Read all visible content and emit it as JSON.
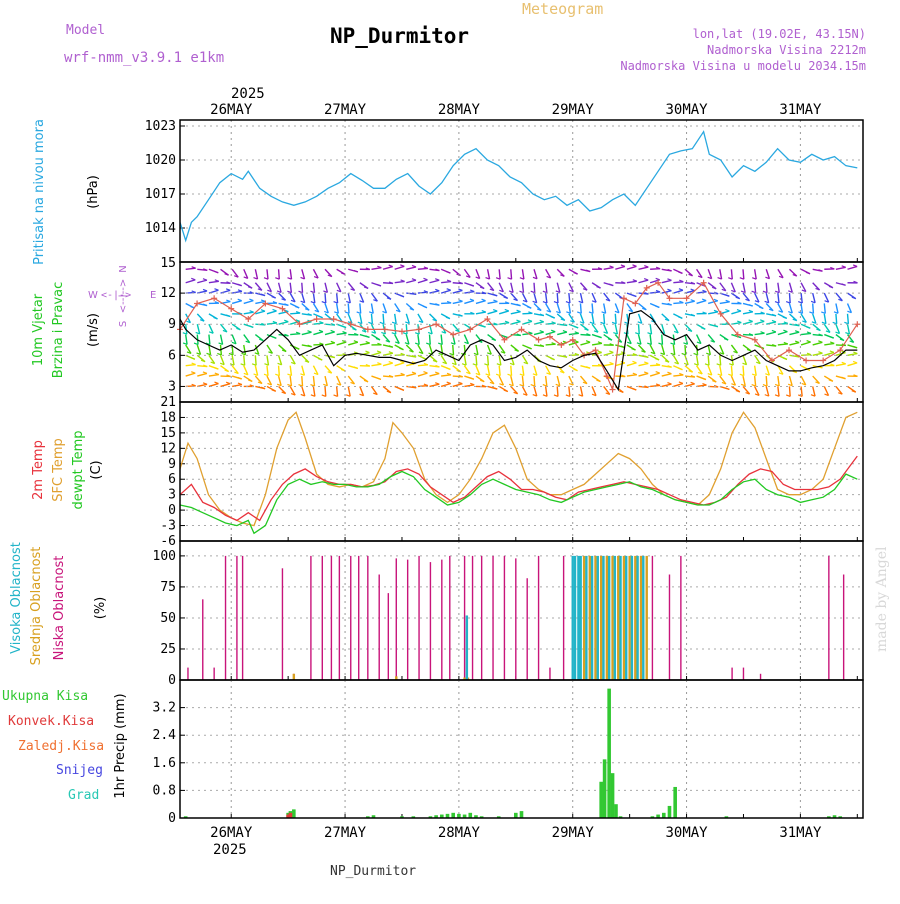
{
  "header": {
    "model_label": "Model",
    "model_name": "wrf-nmm_v3.9.1  e1km",
    "meteogram_label": "Meteogram",
    "station_title": "NP_Durmitor",
    "coords": "lon,lat (19.02E, 43.15N)",
    "altitude": "Nadmorska Visina 2212m",
    "model_altitude": "Nadmorska Visina u modelu 2034.15m"
  },
  "footer": {
    "station": "NP_Durmitor"
  },
  "watermark": "made by Angel",
  "colors": {
    "pressure": "#2aa8e0",
    "wind_mean": "#000000",
    "wind_gust": "#e06050",
    "t2m": "#e8323c",
    "tsfc": "#e0a030",
    "dewpt": "#22c822",
    "cloud_high": "#22b4c8",
    "cloud_mid": "#d8a020",
    "cloud_low": "#c8147a",
    "precip_total": "#32c832",
    "precip_conv": "#e03a3a",
    "precip_frozen": "#f07030",
    "precip_snow": "#4646e0",
    "precip_grad": "#28c8b4"
  },
  "time_axis": {
    "top_year": "2025",
    "bottom_year": "2025",
    "days": [
      "26MAY",
      "27MAY",
      "28MAY",
      "29MAY",
      "30MAY",
      "31MAY"
    ]
  },
  "chart_data": [
    {
      "id": "pressure",
      "type": "line",
      "ylabel_lines": [
        "Pritisak na nivou mora"
      ],
      "unit": "(hPa)",
      "ylim": [
        1011,
        1023
      ],
      "yticks": [
        1014,
        1017,
        1020,
        1023
      ],
      "x_days": [
        25.55,
        25.6,
        25.65,
        25.7,
        25.8,
        25.9,
        26.0,
        26.1,
        26.15,
        26.25,
        26.35,
        26.45,
        26.55,
        26.65,
        26.75,
        26.85,
        26.95,
        27.05,
        27.15,
        27.25,
        27.35,
        27.45,
        27.55,
        27.65,
        27.75,
        27.85,
        27.95,
        28.05,
        28.15,
        28.25,
        28.35,
        28.45,
        28.55,
        28.65,
        28.75,
        28.85,
        28.95,
        29.05,
        29.15,
        29.25,
        29.35,
        29.45,
        29.55,
        29.65,
        29.75,
        29.85,
        29.95,
        30.05,
        30.15,
        30.2,
        30.3,
        30.4,
        30.5,
        30.6,
        30.7,
        30.8,
        30.9,
        31.0,
        31.1,
        31.2,
        31.3,
        31.4,
        31.5
      ],
      "values": [
        1014.5,
        1012.9,
        1014.5,
        1015.0,
        1016.5,
        1018.0,
        1018.8,
        1018.3,
        1019.0,
        1017.5,
        1016.8,
        1016.3,
        1016.0,
        1016.3,
        1016.8,
        1017.5,
        1018.0,
        1018.8,
        1018.2,
        1017.5,
        1017.5,
        1018.3,
        1018.8,
        1017.7,
        1017.0,
        1018.0,
        1019.5,
        1020.5,
        1021.0,
        1020.0,
        1019.5,
        1018.5,
        1018.0,
        1017.0,
        1016.5,
        1016.8,
        1016.0,
        1016.5,
        1015.5,
        1015.8,
        1016.5,
        1017.0,
        1016.0,
        1017.5,
        1019.0,
        1020.5,
        1020.8,
        1021.0,
        1022.5,
        1020.5,
        1020.0,
        1018.5,
        1019.5,
        1019.0,
        1019.8,
        1021.0,
        1020.0,
        1019.8,
        1020.5,
        1020.0,
        1020.3,
        1019.5,
        1019.3
      ],
      "line_width": 1.3
    },
    {
      "id": "wind",
      "type": "line",
      "ylabel_lines": [
        "10m Vjetar",
        "Brzina i Pravac"
      ],
      "unit": "(m/s)",
      "ylim": [
        1.5,
        15
      ],
      "yticks": [
        3,
        6,
        9,
        12,
        15
      ],
      "legend_compass": {
        "n": "N",
        "s": "S",
        "w": "W",
        "e": "E",
        "glyph_top": "<-|->",
        "glyph_bottom": "<--|-->"
      },
      "mean_speed": {
        "x_days": [
          25.55,
          25.6,
          25.7,
          25.8,
          25.9,
          26.0,
          26.1,
          26.2,
          26.3,
          26.4,
          26.5,
          26.6,
          26.7,
          26.8,
          26.9,
          27.0,
          27.1,
          27.2,
          27.3,
          27.4,
          27.5,
          27.6,
          27.7,
          27.8,
          27.9,
          28.0,
          28.1,
          28.2,
          28.3,
          28.4,
          28.5,
          28.6,
          28.7,
          28.8,
          28.9,
          29.0,
          29.1,
          29.2,
          29.3,
          29.4,
          29.5,
          29.6,
          29.7,
          29.8,
          29.9,
          30.0,
          30.1,
          30.2,
          30.3,
          30.4,
          30.5,
          30.6,
          30.7,
          30.8,
          30.9,
          31.0,
          31.1,
          31.2,
          31.3,
          31.4,
          31.5
        ],
        "values": [
          9.5,
          8.5,
          7.5,
          7.0,
          6.5,
          7.0,
          6.3,
          6.5,
          7.5,
          8.5,
          7.5,
          6.0,
          6.5,
          7.0,
          5.0,
          6.0,
          6.2,
          6.0,
          5.8,
          5.8,
          5.5,
          5.2,
          5.5,
          6.5,
          6.0,
          5.5,
          7.0,
          7.5,
          7.0,
          5.5,
          5.8,
          6.5,
          5.5,
          5.0,
          4.8,
          5.5,
          6.0,
          6.2,
          4.5,
          2.7,
          10.0,
          10.3,
          9.5,
          8.0,
          7.5,
          8.0,
          6.5,
          7.0,
          6.0,
          5.5,
          6.0,
          6.5,
          5.5,
          5.0,
          4.5,
          4.5,
          4.8,
          5.0,
          5.5,
          6.5,
          6.5
        ]
      },
      "gust_speed": {
        "x_days": [
          25.55,
          25.7,
          25.85,
          26.0,
          26.15,
          26.3,
          26.45,
          26.6,
          26.75,
          26.9,
          27.05,
          27.2,
          27.35,
          27.5,
          27.65,
          27.8,
          27.95,
          28.1,
          28.25,
          28.4,
          28.55,
          28.7,
          28.8,
          28.9,
          29.0,
          29.1,
          29.2,
          29.3,
          29.35,
          29.45,
          29.55,
          29.65,
          29.75,
          29.85,
          30.0,
          30.15,
          30.3,
          30.45,
          30.6,
          30.75,
          30.9,
          31.05,
          31.2,
          31.35,
          31.5
        ],
        "values": [
          8.5,
          11.0,
          11.5,
          10.5,
          9.5,
          11.0,
          10.5,
          9.0,
          9.5,
          9.5,
          9.0,
          8.5,
          8.5,
          8.3,
          8.5,
          9.0,
          8.0,
          8.5,
          9.5,
          7.5,
          8.5,
          7.5,
          7.8,
          7.0,
          7.5,
          6.0,
          6.5,
          4.0,
          2.7,
          11.5,
          11.0,
          12.5,
          13.0,
          11.5,
          11.5,
          13.0,
          10.0,
          8.0,
          7.5,
          5.5,
          6.5,
          5.5,
          5.5,
          6.5,
          9.0
        ]
      },
      "barb_speed_colors": [
        "#ff7000",
        "#ffaa00",
        "#ffdd00",
        "#a6e000",
        "#46cf00",
        "#00c855",
        "#00c8b4",
        "#00b4d8",
        "#1e90ff",
        "#3c46e6",
        "#7828c8",
        "#9614b4"
      ],
      "barb_levels": [
        3,
        4,
        5,
        6,
        7,
        8,
        9,
        10,
        11,
        12,
        13,
        14.3
      ]
    },
    {
      "id": "temperature",
      "type": "line",
      "ylabel_lines": [
        "2m Temp",
        "SFC Temp",
        "dewpt Temp"
      ],
      "unit": "(C)",
      "ylim": [
        -6,
        21
      ],
      "yticks": [
        -6,
        -3,
        0,
        3,
        6,
        9,
        12,
        15,
        18,
        21
      ],
      "series": [
        {
          "name": "2m Temp",
          "x_days": [
            25.55,
            25.65,
            25.75,
            25.85,
            25.95,
            26.05,
            26.15,
            26.25,
            26.35,
            26.45,
            26.55,
            26.65,
            26.75,
            26.85,
            26.95,
            27.05,
            27.15,
            27.25,
            27.35,
            27.45,
            27.55,
            27.65,
            27.75,
            27.85,
            27.95,
            28.05,
            28.15,
            28.25,
            28.35,
            28.45,
            28.55,
            28.65,
            28.75,
            28.85,
            28.95,
            29.05,
            29.15,
            29.25,
            29.35,
            29.45,
            29.55,
            29.65,
            29.75,
            29.85,
            29.95,
            30.05,
            30.15,
            30.25,
            30.35,
            30.45,
            30.55,
            30.65,
            30.75,
            30.85,
            30.95,
            31.05,
            31.15,
            31.25,
            31.35,
            31.45,
            31.5
          ],
          "values": [
            3.0,
            5.0,
            1.5,
            0.5,
            -1.0,
            -2.0,
            -0.5,
            -2.0,
            2.0,
            5.0,
            7.0,
            8.0,
            6.5,
            5.5,
            5.0,
            5.0,
            4.5,
            4.8,
            5.5,
            7.5,
            8.0,
            7.0,
            4.5,
            3.0,
            1.5,
            2.5,
            4.5,
            6.5,
            7.5,
            6.0,
            4.0,
            4.0,
            3.5,
            2.5,
            2.0,
            3.5,
            4.0,
            4.5,
            5.0,
            5.5,
            5.0,
            4.5,
            4.0,
            3.0,
            2.0,
            1.5,
            1.0,
            1.5,
            2.5,
            5.0,
            7.0,
            8.0,
            7.5,
            5.0,
            4.0,
            4.0,
            4.0,
            4.5,
            6.0,
            9.0,
            10.5
          ]
        },
        {
          "name": "SFC Temp",
          "x_days": [
            25.55,
            25.62,
            25.7,
            25.8,
            25.9,
            26.0,
            26.1,
            26.2,
            26.3,
            26.4,
            26.5,
            26.57,
            26.65,
            26.75,
            26.85,
            26.95,
            27.05,
            27.15,
            27.25,
            27.35,
            27.42,
            27.5,
            27.6,
            27.7,
            27.8,
            27.9,
            28.0,
            28.1,
            28.2,
            28.3,
            28.4,
            28.5,
            28.6,
            28.7,
            28.8,
            28.9,
            29.0,
            29.1,
            29.2,
            29.3,
            29.4,
            29.5,
            29.6,
            29.7,
            29.8,
            29.9,
            30.0,
            30.1,
            30.2,
            30.3,
            30.4,
            30.5,
            30.6,
            30.7,
            30.8,
            30.9,
            31.0,
            31.1,
            31.2,
            31.3,
            31.4,
            31.5
          ],
          "values": [
            8.0,
            13.0,
            10.0,
            3.0,
            0.0,
            -1.5,
            -2.5,
            -3.0,
            3.0,
            12.0,
            17.5,
            19.0,
            14.0,
            7.0,
            5.0,
            4.5,
            5.0,
            4.5,
            5.5,
            10.0,
            17.0,
            15.0,
            12.0,
            6.0,
            3.0,
            1.5,
            3.0,
            6.0,
            10.0,
            15.0,
            16.5,
            12.0,
            6.0,
            4.0,
            3.0,
            3.0,
            4.0,
            5.0,
            7.0,
            9.0,
            11.0,
            10.0,
            8.0,
            5.0,
            3.0,
            2.0,
            1.5,
            1.0,
            3.0,
            8.0,
            15.0,
            19.0,
            16.0,
            10.0,
            4.0,
            3.0,
            3.0,
            4.0,
            6.0,
            12.0,
            18.0,
            19.0
          ]
        },
        {
          "name": "dewpt Temp",
          "x_days": [
            25.55,
            25.65,
            25.75,
            25.85,
            25.95,
            26.05,
            26.15,
            26.2,
            26.3,
            26.4,
            26.5,
            26.6,
            26.7,
            26.8,
            26.9,
            27.0,
            27.1,
            27.2,
            27.3,
            27.4,
            27.5,
            27.6,
            27.7,
            27.8,
            27.9,
            28.0,
            28.1,
            28.2,
            28.3,
            28.4,
            28.5,
            28.6,
            28.7,
            28.8,
            28.9,
            29.0,
            29.1,
            29.2,
            29.3,
            29.4,
            29.5,
            29.6,
            29.7,
            29.8,
            29.9,
            30.0,
            30.1,
            30.2,
            30.3,
            30.4,
            30.5,
            30.6,
            30.7,
            30.8,
            30.9,
            31.0,
            31.1,
            31.2,
            31.3,
            31.4,
            31.5
          ],
          "values": [
            1.0,
            0.5,
            -0.5,
            -1.5,
            -2.5,
            -3.0,
            -2.0,
            -4.5,
            -3.0,
            2.0,
            5.0,
            6.0,
            5.0,
            5.5,
            5.0,
            5.0,
            4.5,
            4.5,
            5.0,
            6.5,
            7.5,
            6.5,
            4.0,
            2.5,
            1.0,
            1.5,
            3.0,
            5.0,
            6.0,
            5.0,
            4.0,
            3.5,
            3.0,
            2.0,
            1.5,
            2.5,
            3.5,
            4.0,
            4.5,
            5.0,
            5.5,
            4.5,
            4.0,
            3.0,
            2.0,
            1.5,
            1.0,
            1.0,
            2.0,
            4.0,
            5.5,
            6.0,
            4.0,
            3.0,
            2.5,
            1.5,
            2.0,
            2.5,
            4.0,
            7.0,
            6.0
          ]
        }
      ]
    },
    {
      "id": "cloud",
      "type": "bar",
      "ylabel_lines": [
        "Visoka Oblacnost",
        "Srednja Oblacnost",
        "Niska Oblacnost"
      ],
      "unit": "(%)",
      "ylim": [
        0,
        100
      ],
      "yticks": [
        0,
        25,
        50,
        75,
        100
      ],
      "low_cloud": {
        "x_days": [
          25.62,
          25.75,
          25.85,
          25.95,
          26.05,
          26.1,
          26.45,
          26.55,
          26.7,
          26.8,
          26.88,
          26.95,
          27.05,
          27.12,
          27.2,
          27.3,
          27.38,
          27.45,
          27.55,
          27.65,
          27.75,
          27.85,
          27.92,
          28.05,
          28.12,
          28.2,
          28.3,
          28.4,
          28.5,
          28.6,
          28.7,
          28.8,
          28.92,
          29.6,
          29.7,
          29.85,
          29.95,
          30.4,
          30.5,
          30.65,
          31.25,
          31.38
        ],
        "values": [
          10,
          65,
          10,
          100,
          100,
          100,
          90,
          5,
          100,
          100,
          100,
          100,
          100,
          100,
          100,
          85,
          70,
          98,
          97,
          100,
          95,
          97,
          100,
          100,
          100,
          100,
          100,
          100,
          98,
          82,
          100,
          10,
          100,
          100,
          100,
          85,
          100,
          10,
          10,
          5,
          100,
          85
        ]
      },
      "mid_cloud": {
        "x_days": [
          26.55,
          27.45,
          28.05,
          28.08,
          29.1,
          29.15,
          29.2,
          29.25,
          29.3,
          29.35,
          29.4,
          29.45,
          29.5,
          29.55,
          29.6,
          29.65
        ],
        "values": [
          5,
          3,
          2,
          2,
          100,
          100,
          100,
          100,
          100,
          100,
          100,
          100,
          100,
          100,
          100,
          100
        ]
      },
      "high_cloud": {
        "x_days": [
          28.07,
          29.0,
          29.02,
          29.05,
          29.07,
          29.12,
          29.17,
          29.22,
          29.27,
          29.32,
          29.37,
          29.42,
          29.47,
          29.52,
          29.57,
          29.62
        ],
        "values": [
          52,
          100,
          100,
          100,
          100,
          100,
          100,
          100,
          100,
          100,
          100,
          100,
          100,
          100,
          100,
          100
        ]
      },
      "baseline_text": "0"
    },
    {
      "id": "precip",
      "type": "bar",
      "legend": [
        "Ukupna Kisa",
        "Konvek.Kisa",
        "Zaledj.Kisa",
        "Snijeg",
        "Grad"
      ],
      "ylabel_lines": [
        "1hr Precip (mm)"
      ],
      "ylim": [
        0,
        4.0
      ],
      "yticks": [
        0,
        0.8,
        1.6,
        2.4,
        3.2
      ],
      "ytick_labels": [
        "0",
        "0.8",
        "1.6",
        "2.4",
        "3.2"
      ],
      "total": {
        "x_days": [
          25.6,
          26.5,
          26.52,
          26.55,
          27.2,
          27.25,
          27.5,
          27.6,
          27.75,
          27.8,
          27.85,
          27.9,
          27.95,
          28.0,
          28.05,
          28.1,
          28.15,
          28.2,
          28.35,
          28.5,
          28.55,
          29.25,
          29.28,
          29.32,
          29.35,
          29.38,
          29.42,
          29.7,
          29.75,
          29.8,
          29.85,
          29.9,
          30.35,
          31.25,
          31.3,
          31.35
        ],
        "values": [
          0.05,
          0.15,
          0.2,
          0.25,
          0.05,
          0.08,
          0.05,
          0.05,
          0.05,
          0.08,
          0.1,
          0.12,
          0.15,
          0.12,
          0.1,
          0.15,
          0.08,
          0.05,
          0.05,
          0.15,
          0.2,
          1.05,
          1.7,
          3.75,
          1.3,
          0.4,
          0.05,
          0.05,
          0.1,
          0.15,
          0.35,
          0.9,
          0.05,
          0.05,
          0.08,
          0.05
        ]
      },
      "convective": {
        "x_days": [
          26.5,
          26.52
        ],
        "values": [
          0.1,
          0.15
        ]
      }
    }
  ]
}
